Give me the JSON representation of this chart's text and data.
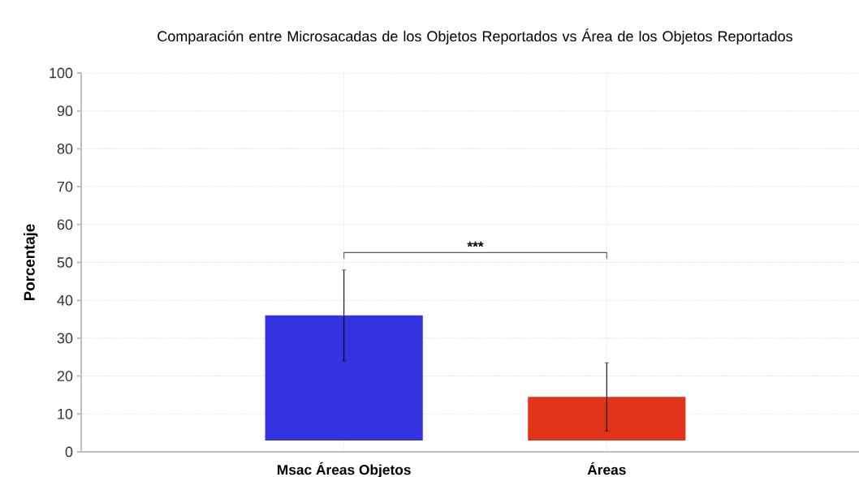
{
  "chart_data": {
    "type": "bar",
    "title": "Comparación entre Microsacadas de los Objetos Reportados vs Área de los Objetos Reportados",
    "ylabel": "Porcentaje",
    "categories": [
      "Msac Áreas Objetos",
      "Áreas"
    ],
    "base": [
      3,
      3
    ],
    "values": [
      33,
      11.5
    ],
    "colors": [
      "#3333e0",
      "#e23418"
    ],
    "errors": [
      12,
      9
    ],
    "ylim": [
      0,
      100
    ],
    "yticks": [
      0,
      10,
      20,
      30,
      40,
      50,
      60,
      70,
      80,
      90,
      100
    ],
    "grid": true,
    "annotations": [
      "***"
    ]
  }
}
